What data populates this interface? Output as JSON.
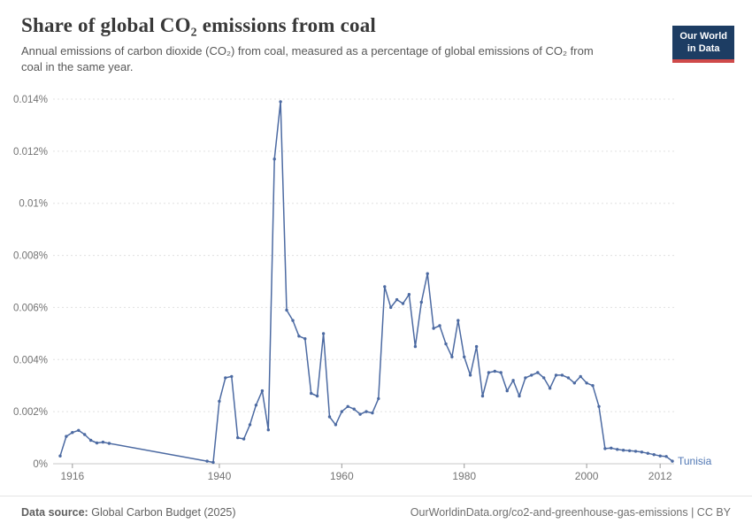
{
  "header": {
    "title": "Share of global CO₂ emissions from coal",
    "subtitle": "Annual emissions of carbon dioxide (CO₂) from coal, measured as a percentage of global emissions of CO₂ from coal in the same year.",
    "logo": {
      "line1": "Our World",
      "line2": "in Data"
    }
  },
  "chart_data": {
    "type": "line",
    "title": "Share of global CO₂ emissions from coal",
    "entity": "Tunisia",
    "unit": "%",
    "grid": "dashed-horizontal",
    "legend_position": "end-of-line-label",
    "ylim": [
      0,
      0.014
    ],
    "y_ticks": [
      0,
      0.002,
      0.004,
      0.006,
      0.008,
      0.01,
      0.012,
      0.014
    ],
    "x_ticks": [
      1916,
      1940,
      1960,
      1980,
      2000,
      2012
    ],
    "x": [
      1914,
      1915,
      1916,
      1917,
      1918,
      1919,
      1920,
      1921,
      1922,
      1938,
      1939,
      1940,
      1941,
      1942,
      1943,
      1944,
      1945,
      1946,
      1947,
      1948,
      1949,
      1950,
      1951,
      1952,
      1953,
      1954,
      1955,
      1956,
      1957,
      1958,
      1959,
      1960,
      1961,
      1962,
      1963,
      1964,
      1965,
      1966,
      1967,
      1968,
      1969,
      1970,
      1971,
      1972,
      1973,
      1974,
      1975,
      1976,
      1977,
      1978,
      1979,
      1980,
      1981,
      1982,
      1983,
      1984,
      1985,
      1986,
      1987,
      1988,
      1989,
      1990,
      1991,
      1992,
      1993,
      1994,
      1995,
      1996,
      1997,
      1998,
      1999,
      2000,
      2001,
      2002,
      2003,
      2004,
      2005,
      2006,
      2007,
      2008,
      2009,
      2010,
      2011,
      2012,
      2013,
      2014
    ],
    "series": [
      {
        "name": "Tunisia",
        "values": [
          0.0003,
          0.00105,
          0.0012,
          0.00128,
          0.00112,
          0.0009,
          0.0008,
          0.00083,
          0.00078,
          0.0001,
          5e-05,
          0.0024,
          0.0033,
          0.00335,
          0.001,
          0.00095,
          0.0015,
          0.00225,
          0.0028,
          0.0013,
          0.0117,
          0.0139,
          0.0059,
          0.0055,
          0.0049,
          0.0048,
          0.0027,
          0.0026,
          0.005,
          0.0018,
          0.0015,
          0.002,
          0.0022,
          0.0021,
          0.0019,
          0.002,
          0.00195,
          0.0025,
          0.0068,
          0.006,
          0.0063,
          0.00615,
          0.0065,
          0.0045,
          0.0062,
          0.0073,
          0.0052,
          0.0053,
          0.0046,
          0.0041,
          0.0055,
          0.0041,
          0.0034,
          0.0045,
          0.0026,
          0.0035,
          0.00355,
          0.0035,
          0.0028,
          0.0032,
          0.0026,
          0.0033,
          0.0034,
          0.0035,
          0.0033,
          0.0029,
          0.0034,
          0.0034,
          0.0033,
          0.0031,
          0.00335,
          0.0031,
          0.003,
          0.0022,
          0.00058,
          0.0006,
          0.00055,
          0.00052,
          0.0005,
          0.00048,
          0.00045,
          0.0004,
          0.00035,
          0.0003,
          0.00028,
          0.0001
        ]
      }
    ],
    "end_label": "Tunisia",
    "xlabel": "",
    "ylabel": ""
  },
  "footer": {
    "source_label": "Data source:",
    "source_value": "Global Carbon Budget (2025)",
    "link": "OurWorldinData.org/co2-and-greenhouse-gas-emissions | CC BY"
  },
  "colors": {
    "accent": "#4c6aa2",
    "end_label": "#5077b4",
    "grid": "#e0e0e0",
    "axis": "#c9c9c9",
    "tick_text": "#737373",
    "logo_bg": "#1d3d63",
    "logo_red": "#cf4a4a"
  }
}
